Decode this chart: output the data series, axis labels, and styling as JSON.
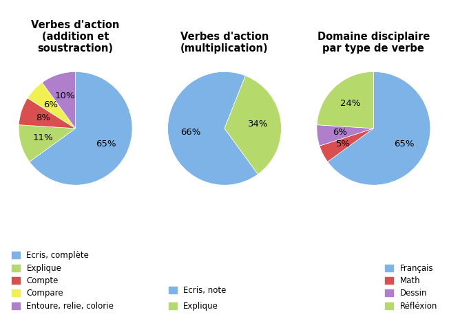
{
  "pie1": {
    "title": "Verbes d'action\n(addition et\nsoustraction)",
    "values": [
      65,
      11,
      8,
      6,
      10
    ],
    "labels": [
      "65%",
      "11%",
      "8%",
      "6%",
      "10%"
    ],
    "colors": [
      "#7EB3E8",
      "#B5D96B",
      "#D94F4F",
      "#F0F050",
      "#B07FCC"
    ],
    "legend_labels": [
      "Ecris, complète",
      "Explique",
      "Compte",
      "Compare",
      "Entoure, relie, colorie"
    ],
    "startangle": 90
  },
  "pie2": {
    "title": "Verbes d'action\n(multiplication)",
    "values": [
      66,
      34
    ],
    "labels": [
      "66%",
      "34%"
    ],
    "colors": [
      "#7EB3E8",
      "#B5D96B"
    ],
    "legend_labels": [
      "Ecris, note",
      "Explique"
    ],
    "startangle": -54
  },
  "pie3": {
    "title": "Domaine disciplaire\npar type de verbe",
    "values": [
      65,
      5,
      6,
      24
    ],
    "labels": [
      "65%",
      "5%",
      "6%",
      "24%"
    ],
    "colors": [
      "#7EB3E8",
      "#D94F4F",
      "#B07FCC",
      "#B5D96B"
    ],
    "legend_labels": [
      "Français",
      "Math",
      "Dessin",
      "Réfléxion"
    ],
    "startangle": 90
  },
  "background_color": "#FFFFFF",
  "title_fontsize": 10.5,
  "label_fontsize": 9.5,
  "legend_fontsize": 8.5
}
